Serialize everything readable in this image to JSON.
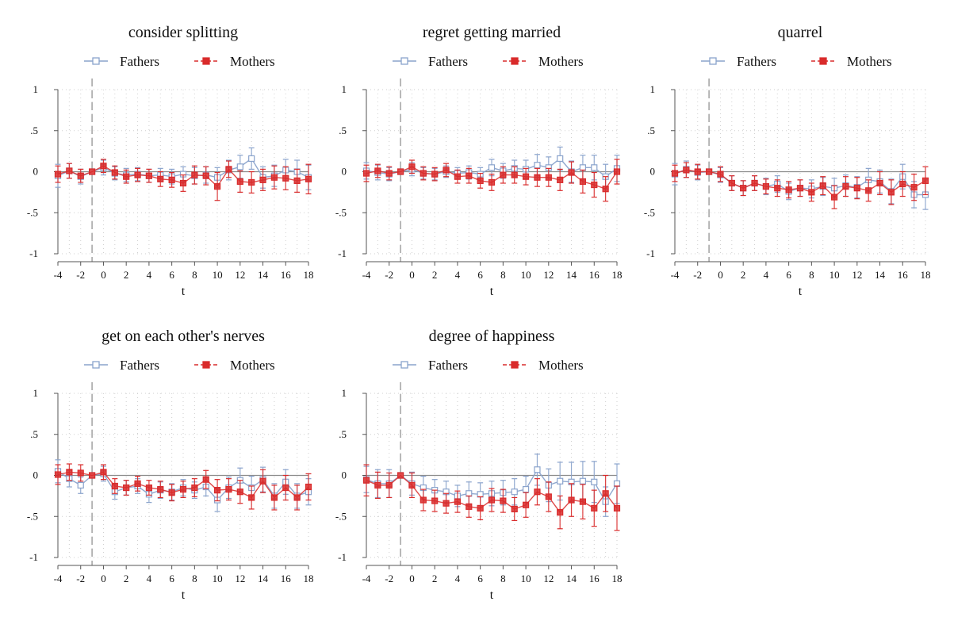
{
  "figure": {
    "colors": {
      "fathers": "#8aa3cc",
      "mothers": "#d92b2b",
      "grid": "#cfcfcf",
      "axis": "#555555",
      "zero": "#8c8c8c"
    }
  },
  "chart_data": [
    {
      "type": "scatter",
      "title": "consider splitting",
      "xlabel": "t",
      "ylabel": "",
      "xlim": [
        -4,
        18
      ],
      "ylim": [
        -1,
        1
      ],
      "xticks": [
        "-4",
        "-2",
        "0",
        "2",
        "4",
        "6",
        "8",
        "10",
        "12",
        "14",
        "16",
        "18"
      ],
      "yticks": [
        "1",
        ".5",
        "0",
        "-.5",
        "-1"
      ],
      "reference_line_x": -1,
      "grid": true,
      "legend": "top",
      "x": [
        -4,
        -3,
        -2,
        -1,
        0,
        1,
        2,
        3,
        4,
        5,
        6,
        7,
        8,
        9,
        10,
        11,
        12,
        13,
        14,
        15,
        16,
        17,
        18
      ],
      "series": [
        {
          "name": "Fathers",
          "values": [
            -0.05,
            0.01,
            -0.06,
            0.0,
            0.05,
            -0.02,
            -0.04,
            -0.03,
            -0.05,
            -0.04,
            -0.06,
            -0.03,
            -0.05,
            -0.04,
            -0.07,
            0.02,
            0.06,
            0.16,
            -0.07,
            -0.05,
            0.02,
            0.0,
            -0.07
          ],
          "lower": [
            -0.19,
            -0.08,
            -0.15,
            0.0,
            -0.04,
            -0.1,
            -0.12,
            -0.11,
            -0.13,
            -0.12,
            -0.15,
            -0.12,
            -0.15,
            -0.14,
            -0.19,
            -0.1,
            -0.08,
            0.03,
            -0.2,
            -0.18,
            -0.11,
            -0.14,
            -0.22
          ],
          "upper": [
            0.09,
            0.1,
            0.03,
            0.0,
            0.14,
            0.06,
            0.04,
            0.05,
            0.03,
            0.04,
            0.03,
            0.06,
            0.05,
            0.06,
            0.05,
            0.14,
            0.2,
            0.29,
            0.06,
            0.08,
            0.15,
            0.14,
            0.08
          ]
        },
        {
          "name": "Mothers",
          "values": [
            -0.03,
            0.01,
            -0.05,
            0.0,
            0.07,
            -0.01,
            -0.06,
            -0.04,
            -0.05,
            -0.09,
            -0.1,
            -0.14,
            -0.04,
            -0.05,
            -0.18,
            0.03,
            -0.12,
            -0.13,
            -0.1,
            -0.07,
            -0.08,
            -0.11,
            -0.09
          ],
          "lower": [
            -0.13,
            -0.08,
            -0.13,
            0.0,
            -0.01,
            -0.09,
            -0.14,
            -0.12,
            -0.13,
            -0.18,
            -0.19,
            -0.24,
            -0.15,
            -0.16,
            -0.35,
            -0.07,
            -0.25,
            -0.26,
            -0.23,
            -0.21,
            -0.22,
            -0.25,
            -0.27
          ],
          "upper": [
            0.07,
            0.1,
            0.03,
            0.0,
            0.15,
            0.07,
            0.02,
            0.04,
            0.03,
            0.0,
            -0.01,
            -0.04,
            0.07,
            0.06,
            -0.01,
            0.13,
            0.01,
            0.0,
            0.03,
            0.07,
            0.06,
            0.03,
            0.09
          ]
        }
      ]
    },
    {
      "type": "scatter",
      "title": "regret getting married",
      "xlabel": "t",
      "ylabel": "",
      "xlim": [
        -4,
        18
      ],
      "ylim": [
        -1,
        1
      ],
      "xticks": [
        "-4",
        "-2",
        "0",
        "2",
        "4",
        "6",
        "8",
        "10",
        "12",
        "14",
        "16",
        "18"
      ],
      "yticks": [
        "1",
        ".5",
        "0",
        "-.5",
        "-1"
      ],
      "reference_line_x": -1,
      "grid": true,
      "legend": "top",
      "x": [
        -4,
        -3,
        -2,
        -1,
        0,
        1,
        2,
        3,
        4,
        5,
        6,
        7,
        8,
        9,
        10,
        11,
        12,
        13,
        14,
        15,
        16,
        17,
        18
      ],
      "series": [
        {
          "name": "Fathers",
          "values": [
            0.01,
            -0.01,
            -0.03,
            0.0,
            0.03,
            -0.02,
            -0.03,
            0.0,
            -0.02,
            -0.01,
            -0.03,
            0.05,
            0.01,
            0.04,
            0.03,
            0.08,
            0.05,
            0.16,
            0.0,
            0.05,
            0.05,
            -0.06,
            0.04
          ],
          "lower": [
            -0.09,
            -0.1,
            -0.11,
            0.0,
            -0.05,
            -0.09,
            -0.1,
            -0.07,
            -0.09,
            -0.09,
            -0.11,
            -0.05,
            -0.08,
            -0.06,
            -0.08,
            -0.05,
            -0.08,
            0.02,
            -0.13,
            -0.1,
            -0.1,
            -0.21,
            -0.12
          ],
          "upper": [
            0.11,
            0.08,
            0.05,
            0.0,
            0.11,
            0.05,
            0.04,
            0.07,
            0.05,
            0.07,
            0.05,
            0.15,
            0.1,
            0.14,
            0.14,
            0.21,
            0.18,
            0.3,
            0.13,
            0.2,
            0.2,
            0.09,
            0.2
          ]
        },
        {
          "name": "Mothers",
          "values": [
            -0.02,
            0.01,
            -0.02,
            0.0,
            0.06,
            -0.02,
            -0.03,
            0.02,
            -0.06,
            -0.05,
            -0.11,
            -0.13,
            -0.04,
            -0.04,
            -0.06,
            -0.07,
            -0.07,
            -0.1,
            -0.01,
            -0.12,
            -0.16,
            -0.21,
            0.0
          ],
          "lower": [
            -0.12,
            -0.07,
            -0.1,
            0.0,
            -0.02,
            -0.1,
            -0.11,
            -0.06,
            -0.14,
            -0.14,
            -0.2,
            -0.23,
            -0.14,
            -0.14,
            -0.16,
            -0.18,
            -0.18,
            -0.23,
            -0.14,
            -0.26,
            -0.31,
            -0.36,
            -0.15
          ],
          "upper": [
            0.08,
            0.09,
            0.06,
            0.0,
            0.14,
            0.06,
            0.05,
            0.1,
            0.02,
            0.04,
            -0.02,
            -0.03,
            0.06,
            0.06,
            0.04,
            0.04,
            0.04,
            0.03,
            0.12,
            0.02,
            -0.01,
            -0.06,
            0.15
          ]
        }
      ]
    },
    {
      "type": "scatter",
      "title": "quarrel",
      "xlabel": "t",
      "ylabel": "",
      "xlim": [
        -4,
        18
      ],
      "ylim": [
        -1,
        1
      ],
      "xticks": [
        "-4",
        "-2",
        "0",
        "2",
        "4",
        "6",
        "8",
        "10",
        "12",
        "14",
        "16",
        "18"
      ],
      "yticks": [
        "1",
        ".5",
        "0",
        "-.5",
        "-1"
      ],
      "reference_line_x": -1,
      "grid": true,
      "legend": "top",
      "x": [
        -4,
        -3,
        -2,
        -1,
        0,
        1,
        2,
        3,
        4,
        5,
        6,
        7,
        8,
        9,
        10,
        11,
        12,
        13,
        14,
        15,
        16,
        17,
        18
      ],
      "series": [
        {
          "name": "Fathers",
          "values": [
            -0.03,
            0.03,
            -0.01,
            0.0,
            -0.04,
            -0.14,
            -0.2,
            -0.14,
            -0.18,
            -0.15,
            -0.24,
            -0.2,
            -0.21,
            -0.18,
            -0.2,
            -0.17,
            -0.19,
            -0.1,
            -0.12,
            -0.24,
            -0.06,
            -0.28,
            -0.28
          ],
          "lower": [
            -0.16,
            -0.07,
            -0.1,
            0.0,
            -0.13,
            -0.23,
            -0.29,
            -0.23,
            -0.28,
            -0.25,
            -0.34,
            -0.3,
            -0.32,
            -0.29,
            -0.32,
            -0.3,
            -0.32,
            -0.24,
            -0.26,
            -0.39,
            -0.21,
            -0.44,
            -0.46
          ],
          "upper": [
            0.1,
            0.13,
            0.08,
            0.0,
            0.05,
            -0.05,
            -0.11,
            -0.05,
            -0.08,
            -0.05,
            -0.14,
            -0.1,
            -0.1,
            -0.07,
            -0.08,
            -0.04,
            -0.06,
            0.04,
            0.02,
            -0.09,
            0.09,
            -0.12,
            -0.1
          ]
        },
        {
          "name": "Mothers",
          "values": [
            -0.02,
            0.02,
            0.0,
            0.0,
            -0.03,
            -0.14,
            -0.2,
            -0.14,
            -0.18,
            -0.2,
            -0.22,
            -0.2,
            -0.25,
            -0.17,
            -0.31,
            -0.18,
            -0.2,
            -0.23,
            -0.14,
            -0.25,
            -0.15,
            -0.19,
            -0.11
          ],
          "lower": [
            -0.12,
            -0.07,
            -0.09,
            0.0,
            -0.12,
            -0.23,
            -0.29,
            -0.23,
            -0.27,
            -0.3,
            -0.32,
            -0.3,
            -0.36,
            -0.28,
            -0.45,
            -0.3,
            -0.33,
            -0.36,
            -0.28,
            -0.4,
            -0.3,
            -0.35,
            -0.28
          ],
          "upper": [
            0.08,
            0.11,
            0.09,
            0.0,
            0.06,
            -0.05,
            -0.11,
            -0.05,
            -0.09,
            -0.1,
            -0.12,
            -0.1,
            -0.14,
            -0.06,
            -0.17,
            -0.06,
            -0.07,
            -0.1,
            0.0,
            -0.1,
            0.0,
            -0.03,
            0.06
          ]
        }
      ]
    },
    {
      "type": "scatter",
      "title": "get on each other's nerves",
      "xlabel": "t",
      "ylabel": "",
      "xlim": [
        -4,
        18
      ],
      "ylim": [
        -1,
        1
      ],
      "xticks": [
        "-4",
        "-2",
        "0",
        "2",
        "4",
        "6",
        "8",
        "10",
        "12",
        "14",
        "16",
        "18"
      ],
      "yticks": [
        "1",
        ".5",
        "0",
        "-.5",
        "-1"
      ],
      "reference_line_x": -1,
      "grid": true,
      "legend": "top",
      "x": [
        -4,
        -3,
        -2,
        -1,
        0,
        1,
        2,
        3,
        4,
        5,
        6,
        7,
        8,
        9,
        10,
        11,
        12,
        13,
        14,
        15,
        16,
        17,
        18
      ],
      "series": [
        {
          "name": "Fathers",
          "values": [
            0.05,
            -0.04,
            -0.12,
            0.0,
            0.02,
            -0.2,
            -0.15,
            -0.13,
            -0.23,
            -0.18,
            -0.2,
            -0.15,
            -0.18,
            -0.14,
            -0.3,
            -0.15,
            -0.06,
            -0.15,
            -0.05,
            -0.25,
            -0.08,
            -0.25,
            -0.2
          ],
          "lower": [
            -0.09,
            -0.14,
            -0.22,
            0.0,
            -0.07,
            -0.29,
            -0.24,
            -0.22,
            -0.33,
            -0.28,
            -0.3,
            -0.25,
            -0.28,
            -0.25,
            -0.44,
            -0.28,
            -0.21,
            -0.29,
            -0.2,
            -0.4,
            -0.23,
            -0.4,
            -0.36
          ],
          "upper": [
            0.19,
            0.06,
            -0.02,
            0.0,
            0.11,
            -0.11,
            -0.06,
            -0.04,
            -0.13,
            -0.08,
            -0.1,
            -0.05,
            -0.08,
            -0.03,
            -0.16,
            -0.02,
            0.09,
            -0.01,
            0.1,
            -0.1,
            0.07,
            -0.1,
            -0.04
          ]
        },
        {
          "name": "Mothers",
          "values": [
            0.01,
            0.04,
            0.03,
            0.0,
            0.04,
            -0.13,
            -0.15,
            -0.1,
            -0.15,
            -0.17,
            -0.21,
            -0.17,
            -0.15,
            -0.05,
            -0.18,
            -0.17,
            -0.2,
            -0.27,
            -0.07,
            -0.27,
            -0.15,
            -0.27,
            -0.14
          ],
          "lower": [
            -0.11,
            -0.06,
            -0.07,
            0.0,
            -0.05,
            -0.22,
            -0.24,
            -0.19,
            -0.24,
            -0.27,
            -0.31,
            -0.27,
            -0.26,
            -0.16,
            -0.31,
            -0.3,
            -0.34,
            -0.41,
            -0.21,
            -0.42,
            -0.3,
            -0.42,
            -0.3
          ],
          "upper": [
            0.13,
            0.14,
            0.13,
            0.0,
            0.13,
            -0.04,
            -0.06,
            -0.01,
            -0.06,
            -0.07,
            -0.11,
            -0.07,
            -0.04,
            0.06,
            -0.05,
            -0.04,
            -0.06,
            -0.13,
            0.07,
            -0.12,
            0.0,
            -0.12,
            0.02
          ]
        }
      ]
    },
    {
      "type": "scatter",
      "title": "degree of happiness",
      "xlabel": "t",
      "ylabel": "",
      "xlim": [
        -4,
        18
      ],
      "ylim": [
        -1,
        1
      ],
      "xticks": [
        "-4",
        "-2",
        "0",
        "2",
        "4",
        "6",
        "8",
        "10",
        "12",
        "14",
        "16",
        "18"
      ],
      "yticks": [
        "1",
        ".5",
        "0",
        "-.5",
        "-1"
      ],
      "reference_line_x": -1,
      "grid": true,
      "legend": "top",
      "x": [
        -4,
        -3,
        -2,
        -1,
        0,
        1,
        2,
        3,
        4,
        5,
        6,
        7,
        8,
        9,
        10,
        11,
        12,
        13,
        14,
        15,
        16,
        17,
        18
      ],
      "series": [
        {
          "name": "Fathers",
          "values": [
            -0.05,
            -0.1,
            -0.1,
            0.0,
            -0.1,
            -0.15,
            -0.18,
            -0.2,
            -0.25,
            -0.22,
            -0.23,
            -0.22,
            -0.21,
            -0.2,
            -0.17,
            0.07,
            -0.12,
            -0.07,
            -0.08,
            -0.07,
            -0.08,
            -0.32,
            -0.1
          ],
          "lower": [
            -0.21,
            -0.27,
            -0.27,
            0.0,
            -0.24,
            -0.29,
            -0.31,
            -0.33,
            -0.38,
            -0.36,
            -0.37,
            -0.37,
            -0.36,
            -0.36,
            -0.33,
            -0.12,
            -0.32,
            -0.3,
            -0.32,
            -0.31,
            -0.33,
            -0.5,
            -0.34
          ],
          "upper": [
            0.11,
            0.07,
            0.07,
            0.0,
            0.04,
            -0.01,
            -0.05,
            -0.07,
            -0.12,
            -0.08,
            -0.09,
            -0.07,
            -0.06,
            -0.04,
            -0.01,
            0.26,
            0.08,
            0.16,
            0.16,
            0.17,
            0.17,
            -0.14,
            0.14
          ]
        },
        {
          "name": "Mothers",
          "values": [
            -0.06,
            -0.12,
            -0.12,
            0.0,
            -0.12,
            -0.3,
            -0.31,
            -0.34,
            -0.32,
            -0.38,
            -0.4,
            -0.3,
            -0.31,
            -0.41,
            -0.36,
            -0.2,
            -0.26,
            -0.45,
            -0.3,
            -0.32,
            -0.4,
            -0.22,
            -0.4
          ],
          "lower": [
            -0.25,
            -0.28,
            -0.27,
            0.0,
            -0.27,
            -0.43,
            -0.44,
            -0.46,
            -0.45,
            -0.51,
            -0.54,
            -0.44,
            -0.45,
            -0.55,
            -0.51,
            -0.36,
            -0.44,
            -0.65,
            -0.5,
            -0.53,
            -0.62,
            -0.44,
            -0.67
          ],
          "upper": [
            0.13,
            0.04,
            0.03,
            0.0,
            0.03,
            -0.17,
            -0.18,
            -0.22,
            -0.19,
            -0.25,
            -0.26,
            -0.16,
            -0.17,
            -0.27,
            -0.21,
            -0.04,
            -0.08,
            -0.25,
            -0.1,
            -0.11,
            -0.18,
            0.0,
            -0.13
          ]
        }
      ]
    }
  ]
}
